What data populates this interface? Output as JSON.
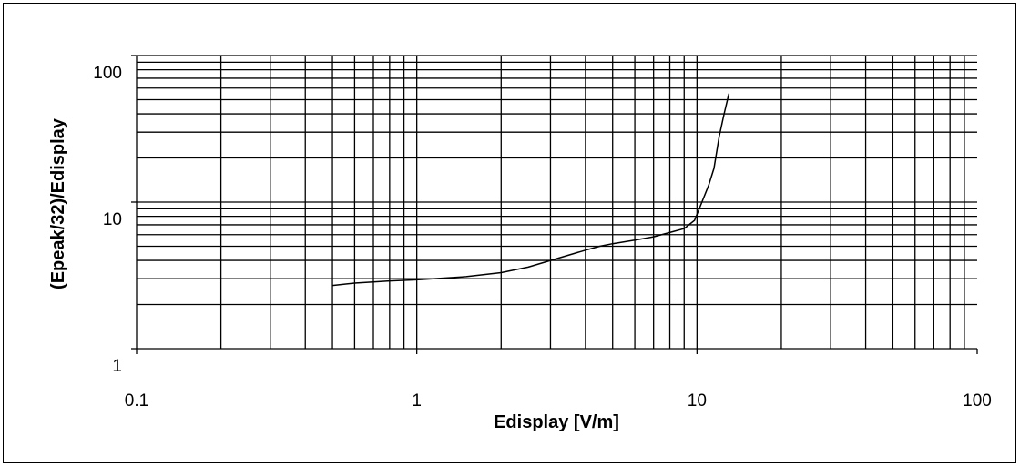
{
  "chart_data": {
    "type": "line",
    "title": "",
    "xlabel": "Edisplay [V/m]",
    "ylabel": "(Epeak/32)/Edisplay",
    "xscale": "log",
    "yscale": "log",
    "xlim": [
      0.1,
      100
    ],
    "ylim": [
      1,
      100
    ],
    "xticks": [
      "0.1",
      "1",
      "10",
      "100"
    ],
    "yticks": [
      "1",
      "10",
      "100"
    ],
    "grid": true,
    "legend": "none",
    "series": [
      {
        "color": "#000000",
        "x": [
          0.5,
          0.6,
          0.8,
          1.0,
          1.5,
          2.0,
          2.5,
          3.0,
          4.0,
          4.5,
          5.0,
          6.0,
          7.0,
          8.0,
          9.0,
          9.8,
          10.3,
          11.0,
          11.5,
          12.0,
          12.5,
          13.0
        ],
        "y": [
          2.7,
          2.8,
          2.9,
          2.95,
          3.1,
          3.3,
          3.6,
          4.0,
          4.7,
          5.0,
          5.2,
          5.5,
          5.8,
          6.2,
          6.6,
          7.5,
          9.5,
          13.0,
          17.0,
          28.0,
          40.0,
          55.0
        ]
      }
    ]
  }
}
